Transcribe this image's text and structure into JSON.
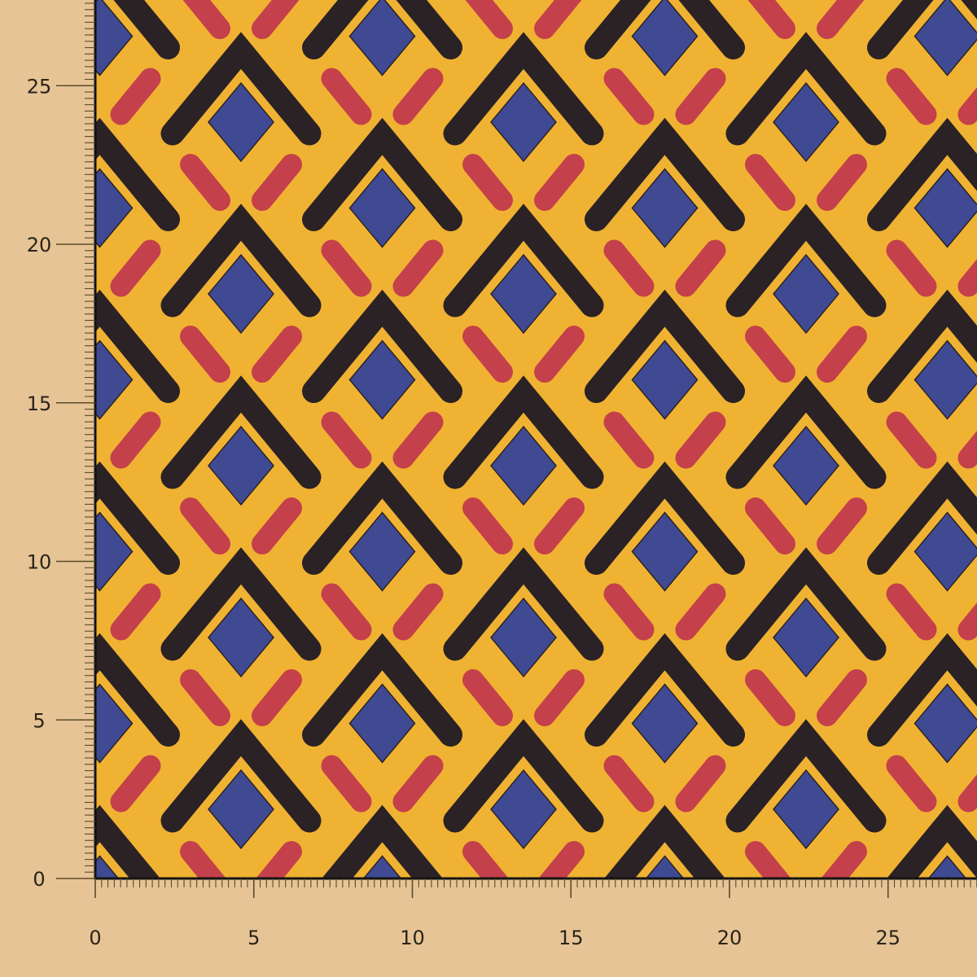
{
  "swatch": {
    "colors": {
      "background": "#e6c496",
      "fabric": "#f0b233",
      "chevron": "#2a2224",
      "diamond": "#3f4a93",
      "pill": "#c4404a",
      "ruler": "#5a4a2a"
    },
    "pattern": "geometric chevron with blue diamond and red pills"
  },
  "ruler": {
    "x_labels": [
      "0",
      "5",
      "10",
      "15",
      "20",
      "25"
    ],
    "y_labels": [
      "0",
      "5",
      "10",
      "15",
      "20",
      "25"
    ]
  }
}
